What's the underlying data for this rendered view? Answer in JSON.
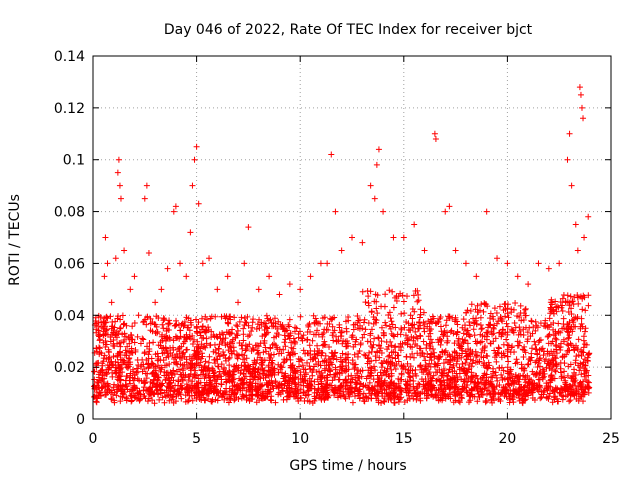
{
  "chart_data": {
    "type": "scatter",
    "title": "Day 046 of 2022, Rate Of TEC Index for receiver bjct",
    "xlabel": "GPS time / hours",
    "ylabel": "ROTI / TECUs",
    "xlim": [
      0,
      25
    ],
    "ylim": [
      0,
      0.14
    ],
    "x_ticks": [
      0,
      5,
      10,
      15,
      20,
      25
    ],
    "y_ticks": [
      0,
      0.02,
      0.04,
      0.06,
      0.08,
      0.1,
      0.12,
      0.14
    ],
    "x_tick_labels": [
      "0",
      "5",
      "10",
      "15",
      "20",
      "25"
    ],
    "y_tick_labels": [
      "0",
      "0.02",
      "0.04",
      "0.06",
      "0.08",
      "0.1",
      "0.12",
      "0.14"
    ],
    "grid": true,
    "marker": "+",
    "color": "#ff0000",
    "series": [
      {
        "name": "ROTI",
        "points": [
          [
            0.1,
            0.012
          ],
          [
            0.3,
            0.025
          ],
          [
            0.5,
            0.035
          ],
          [
            0.55,
            0.055
          ],
          [
            0.6,
            0.07
          ],
          [
            0.7,
            0.06
          ],
          [
            0.9,
            0.045
          ],
          [
            1.1,
            0.062
          ],
          [
            1.2,
            0.095
          ],
          [
            1.25,
            0.1
          ],
          [
            1.3,
            0.09
          ],
          [
            1.35,
            0.085
          ],
          [
            1.5,
            0.065
          ],
          [
            1.8,
            0.05
          ],
          [
            2.0,
            0.055
          ],
          [
            2.2,
            0.04
          ],
          [
            2.5,
            0.085
          ],
          [
            2.6,
            0.09
          ],
          [
            2.7,
            0.064
          ],
          [
            3.0,
            0.045
          ],
          [
            3.3,
            0.05
          ],
          [
            3.6,
            0.058
          ],
          [
            3.9,
            0.08
          ],
          [
            4.0,
            0.082
          ],
          [
            4.2,
            0.06
          ],
          [
            4.5,
            0.055
          ],
          [
            4.7,
            0.072
          ],
          [
            4.8,
            0.09
          ],
          [
            4.9,
            0.1
          ],
          [
            5.0,
            0.105
          ],
          [
            5.1,
            0.083
          ],
          [
            5.3,
            0.06
          ],
          [
            5.6,
            0.062
          ],
          [
            6.0,
            0.05
          ],
          [
            6.5,
            0.055
          ],
          [
            7.0,
            0.045
          ],
          [
            7.3,
            0.06
          ],
          [
            7.5,
            0.074
          ],
          [
            8.0,
            0.05
          ],
          [
            8.5,
            0.055
          ],
          [
            9.0,
            0.048
          ],
          [
            9.5,
            0.052
          ],
          [
            10.0,
            0.05
          ],
          [
            10.5,
            0.055
          ],
          [
            11.0,
            0.06
          ],
          [
            11.3,
            0.06
          ],
          [
            11.5,
            0.102
          ],
          [
            11.7,
            0.08
          ],
          [
            12.0,
            0.065
          ],
          [
            12.5,
            0.07
          ],
          [
            13.0,
            0.068
          ],
          [
            13.4,
            0.09
          ],
          [
            13.6,
            0.085
          ],
          [
            13.7,
            0.098
          ],
          [
            13.8,
            0.104
          ],
          [
            14.0,
            0.08
          ],
          [
            14.5,
            0.07
          ],
          [
            15.0,
            0.07
          ],
          [
            15.5,
            0.075
          ],
          [
            16.0,
            0.065
          ],
          [
            16.5,
            0.11
          ],
          [
            16.55,
            0.108
          ],
          [
            17.0,
            0.08
          ],
          [
            17.2,
            0.082
          ],
          [
            17.5,
            0.065
          ],
          [
            18.0,
            0.06
          ],
          [
            18.5,
            0.055
          ],
          [
            19.0,
            0.08
          ],
          [
            19.5,
            0.062
          ],
          [
            20.0,
            0.06
          ],
          [
            20.5,
            0.055
          ],
          [
            21.0,
            0.052
          ],
          [
            21.5,
            0.06
          ],
          [
            22.0,
            0.058
          ],
          [
            22.5,
            0.06
          ],
          [
            22.9,
            0.1
          ],
          [
            23.0,
            0.11
          ],
          [
            23.1,
            0.09
          ],
          [
            23.3,
            0.075
          ],
          [
            23.4,
            0.065
          ],
          [
            23.5,
            0.128
          ],
          [
            23.55,
            0.125
          ],
          [
            23.6,
            0.12
          ],
          [
            23.65,
            0.116
          ],
          [
            23.7,
            0.07
          ],
          [
            23.9,
            0.078
          ]
        ]
      }
    ]
  }
}
